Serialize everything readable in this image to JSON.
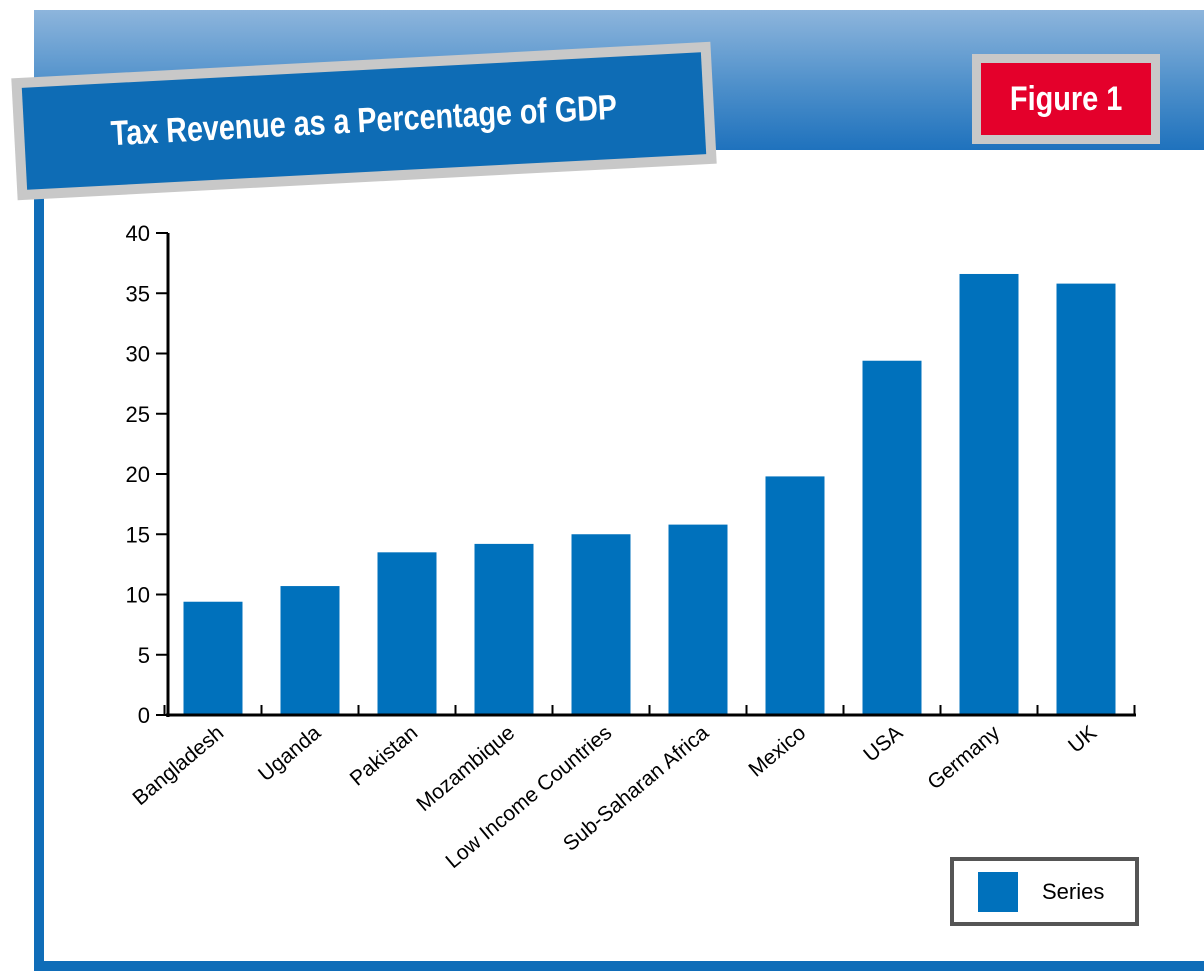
{
  "figure_label": "Figure 1",
  "colors": {
    "bar": "#0071bc",
    "header_blue": "#0e6cb5",
    "badge_red": "#e4002b"
  },
  "chart_data": {
    "type": "bar",
    "title": "Tax Revenue as a Percentage of GDP",
    "xlabel": "",
    "ylabel": "",
    "ylim": [
      0,
      40
    ],
    "yticks": [
      0,
      5,
      10,
      15,
      20,
      25,
      30,
      35,
      40
    ],
    "categories": [
      "Bangladesh",
      "Uganda",
      "Pakistan",
      "Mozambique",
      "Low Income Countries",
      "Sub-Saharan Africa",
      "Mexico",
      "USA",
      "Germany",
      "UK"
    ],
    "series": [
      {
        "name": "Series",
        "values": [
          9.4,
          10.7,
          13.5,
          14.2,
          15.0,
          15.8,
          19.8,
          29.4,
          36.6,
          35.8
        ]
      }
    ],
    "legend": {
      "position": "bottom-right",
      "label": "Series"
    },
    "grid": false
  }
}
